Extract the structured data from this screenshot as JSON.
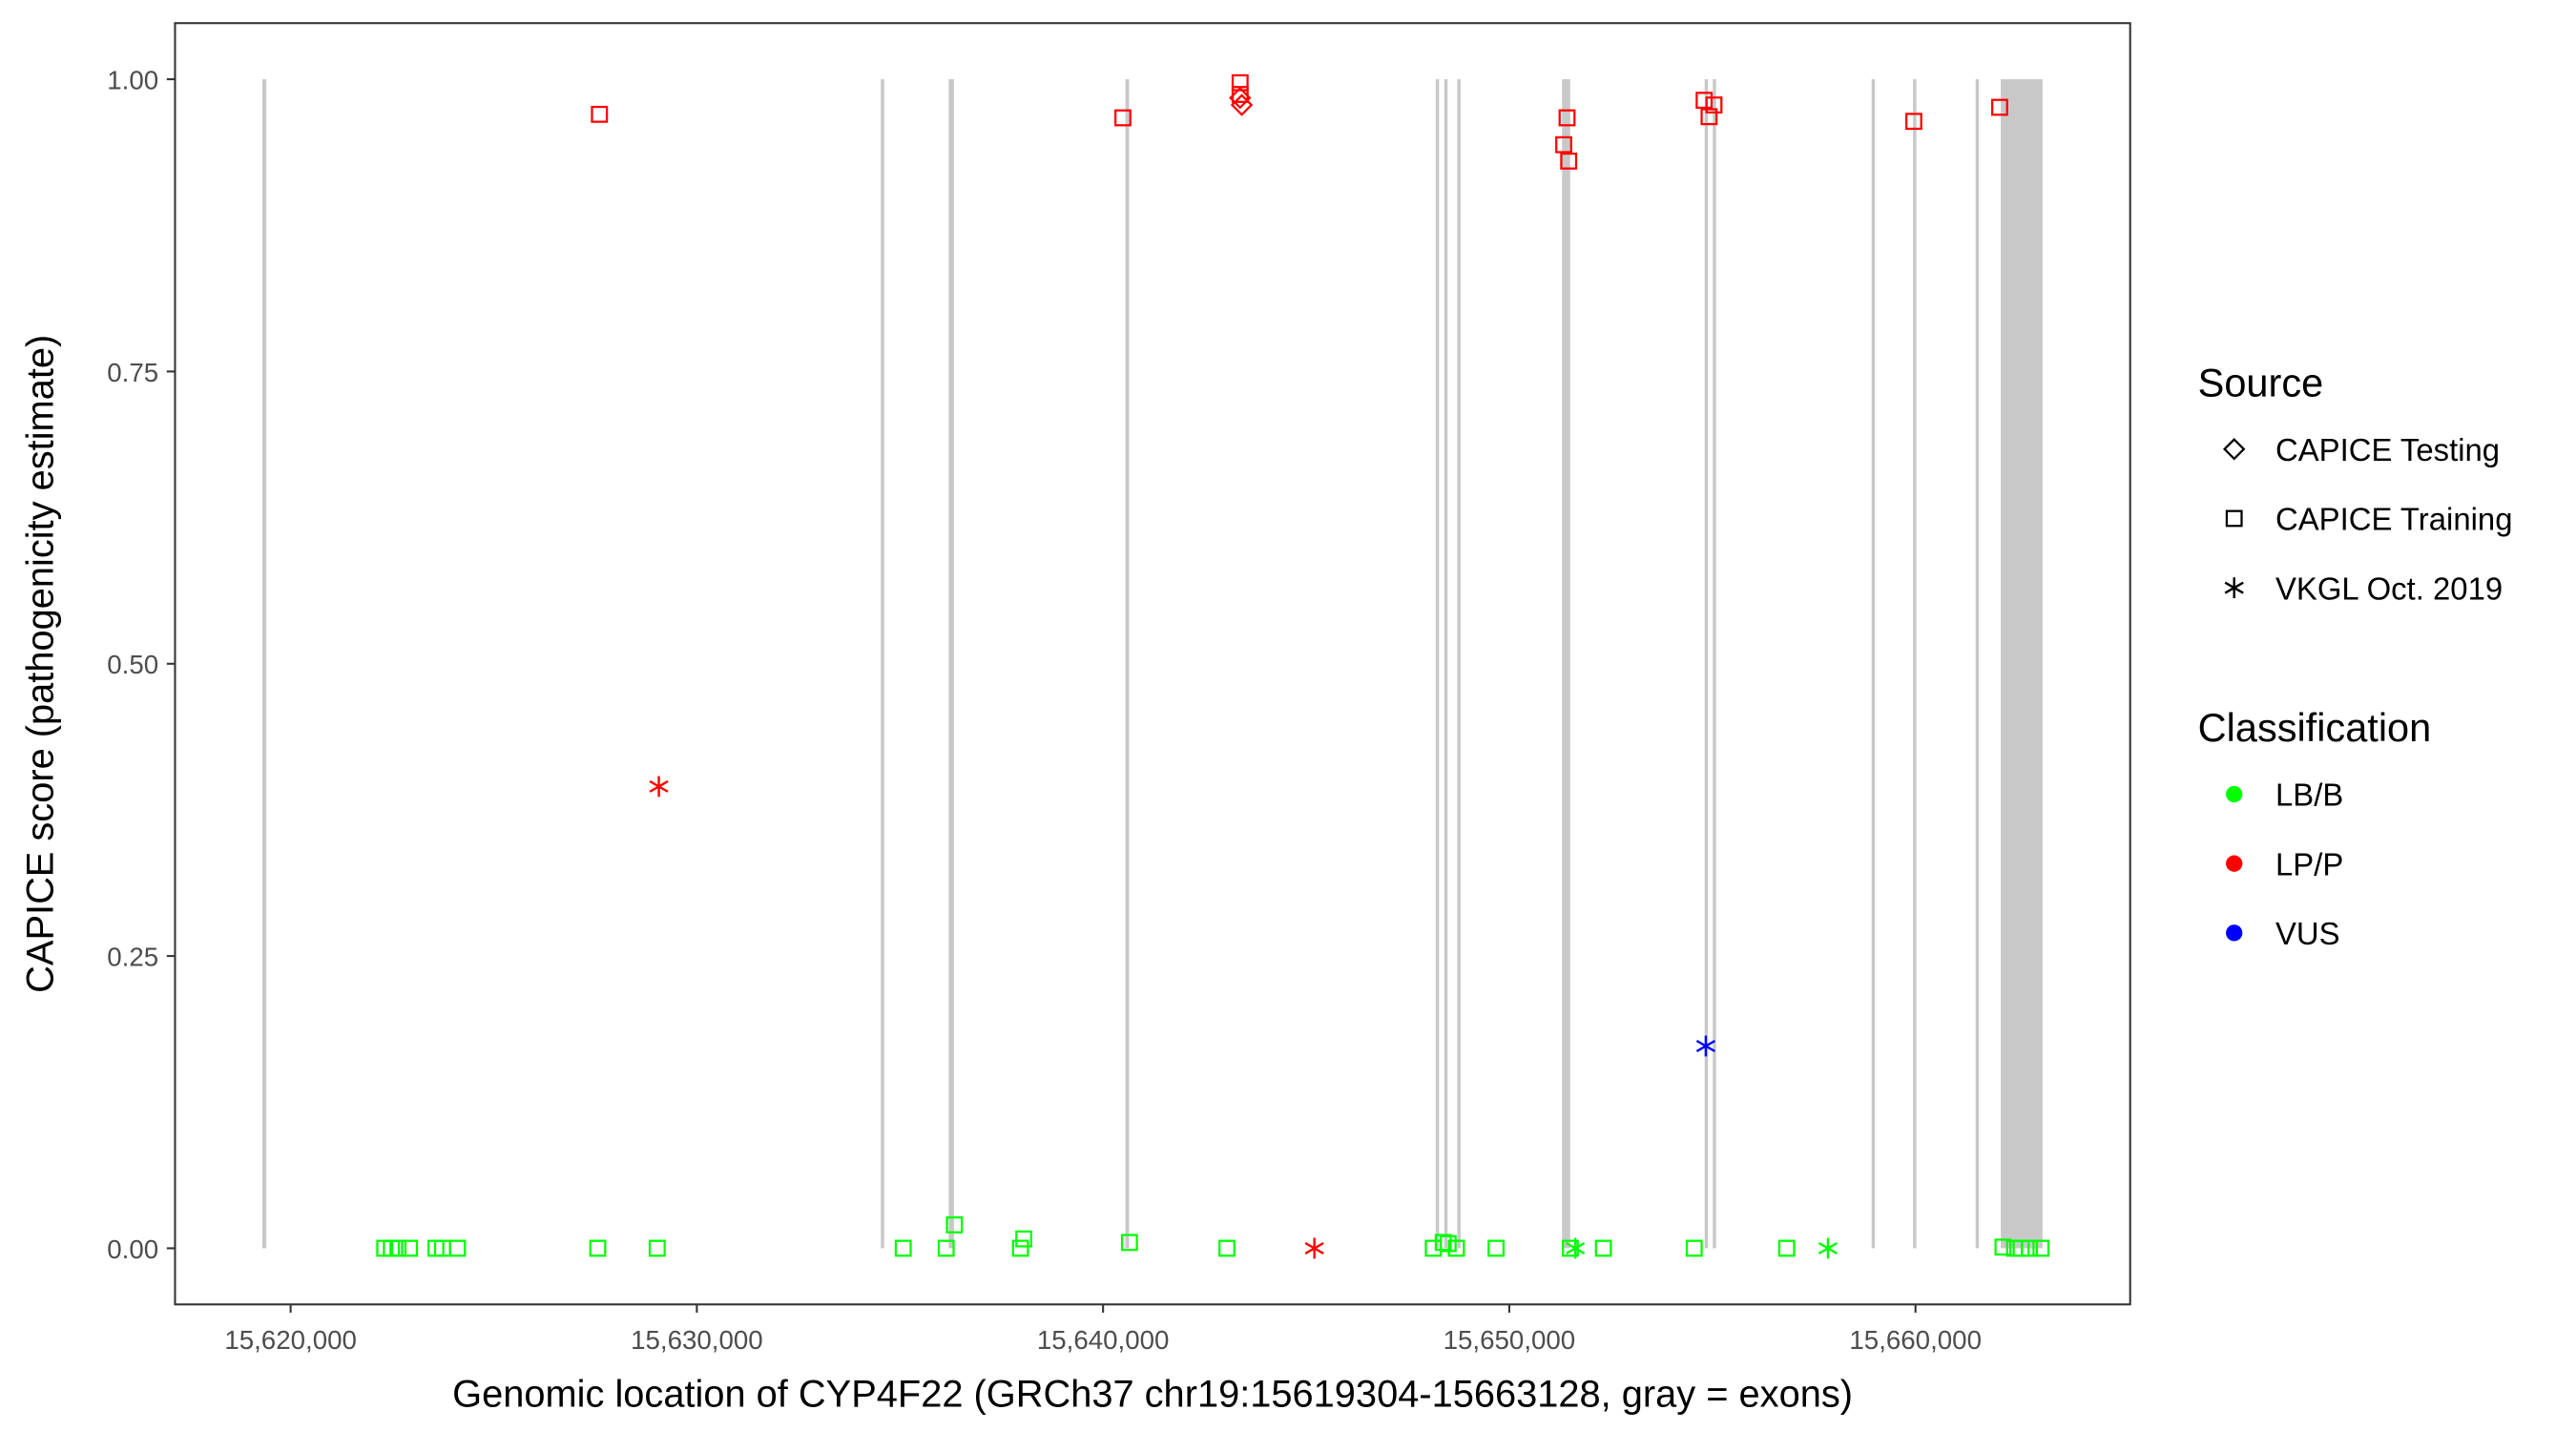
{
  "chart_data": {
    "type": "scatter",
    "xlabel": "Genomic location of CYP4F22 (GRCh37 chr19:15619304-15663128, gray = exons)",
    "ylabel": "CAPICE score (pathogenicity estimate)",
    "xlim": [
      15617000,
      15665000
    ],
    "ylim": [
      -0.045,
      1.05
    ],
    "x_ticks": [
      15620000,
      15630000,
      15640000,
      15650000,
      15660000
    ],
    "x_tick_labels": [
      "15,620,000",
      "15,630,000",
      "15,640,000",
      "15,650,000",
      "15,660,000"
    ],
    "y_ticks": [
      0,
      0.25,
      0.5,
      0.75,
      1.0
    ],
    "y_tick_labels": [
      "0.00",
      "0.25",
      "0.50",
      "0.75",
      "1.00"
    ],
    "grid": false,
    "exon_color": "#c8c8c8",
    "exons": [
      [
        15619304,
        15619400
      ],
      [
        15634530,
        15634580
      ],
      [
        15636200,
        15636330
      ],
      [
        15640550,
        15640640
      ],
      [
        15648190,
        15648240
      ],
      [
        15648400,
        15648450
      ],
      [
        15648720,
        15648780
      ],
      [
        15651300,
        15651500
      ],
      [
        15654810,
        15654860
      ],
      [
        15655010,
        15655070
      ],
      [
        15658920,
        15658990
      ],
      [
        15659940,
        15659990
      ],
      [
        15661480,
        15661540
      ],
      [
        15662100,
        15663128
      ]
    ],
    "legend": {
      "placement": "right",
      "source_title": "Source",
      "source_entries": [
        {
          "label": "CAPICE Testing",
          "shape": "diamond"
        },
        {
          "label": "CAPICE Training",
          "shape": "square"
        },
        {
          "label": "VKGL Oct. 2019",
          "shape": "asterisk"
        }
      ],
      "class_title": "Classification",
      "class_entries": [
        {
          "label": "LB/B",
          "color": "#00ff00"
        },
        {
          "label": "LP/P",
          "color": "#ff0000"
        },
        {
          "label": "VUS",
          "color": "#0000ff"
        }
      ]
    },
    "points": [
      {
        "x": 15622317,
        "y": 0,
        "source": "CAPICE Training",
        "class": "LB/B"
      },
      {
        "x": 15622480,
        "y": 0,
        "source": "CAPICE Training",
        "class": "LB/B"
      },
      {
        "x": 15622642,
        "y": 0,
        "source": "CAPICE Training",
        "class": "LB/B"
      },
      {
        "x": 15622927,
        "y": 0,
        "source": "CAPICE Training",
        "class": "LB/B"
      },
      {
        "x": 15623577,
        "y": 0,
        "source": "CAPICE Training",
        "class": "LB/B"
      },
      {
        "x": 15623740,
        "y": 0,
        "source": "CAPICE Training",
        "class": "LB/B"
      },
      {
        "x": 15624106,
        "y": 0,
        "source": "CAPICE Training",
        "class": "LB/B"
      },
      {
        "x": 15627561,
        "y": 0,
        "source": "CAPICE Training",
        "class": "LB/B"
      },
      {
        "x": 15629024,
        "y": 0,
        "source": "CAPICE Training",
        "class": "LB/B"
      },
      {
        "x": 15635081,
        "y": 0,
        "source": "CAPICE Training",
        "class": "LB/B"
      },
      {
        "x": 15636138,
        "y": 0,
        "source": "CAPICE Training",
        "class": "LB/B"
      },
      {
        "x": 15636341,
        "y": 0.02,
        "source": "CAPICE Training",
        "class": "LB/B"
      },
      {
        "x": 15637967,
        "y": 0,
        "source": "CAPICE Training",
        "class": "LB/B"
      },
      {
        "x": 15638049,
        "y": 0.008,
        "source": "CAPICE Training",
        "class": "LB/B"
      },
      {
        "x": 15640650,
        "y": 0.005,
        "source": "CAPICE Training",
        "class": "LB/B"
      },
      {
        "x": 15643049,
        "y": 0,
        "source": "CAPICE Training",
        "class": "LB/B"
      },
      {
        "x": 15648130,
        "y": 0,
        "source": "CAPICE Training",
        "class": "LB/B"
      },
      {
        "x": 15648374,
        "y": 0.005,
        "source": "CAPICE Training",
        "class": "LB/B"
      },
      {
        "x": 15648496,
        "y": 0.004,
        "source": "CAPICE Training",
        "class": "LB/B"
      },
      {
        "x": 15648699,
        "y": 0,
        "source": "CAPICE Training",
        "class": "LB/B"
      },
      {
        "x": 15649675,
        "y": 0,
        "source": "CAPICE Training",
        "class": "LB/B"
      },
      {
        "x": 15651504,
        "y": 0,
        "source": "CAPICE Training",
        "class": "LB/B"
      },
      {
        "x": 15652317,
        "y": 0,
        "source": "CAPICE Training",
        "class": "LB/B"
      },
      {
        "x": 15654553,
        "y": 0,
        "source": "CAPICE Training",
        "class": "LB/B"
      },
      {
        "x": 15656829,
        "y": 0,
        "source": "CAPICE Training",
        "class": "LB/B"
      },
      {
        "x": 15662154,
        "y": 0.001,
        "source": "CAPICE Training",
        "class": "LB/B"
      },
      {
        "x": 15662439,
        "y": 0,
        "source": "CAPICE Training",
        "class": "LB/B"
      },
      {
        "x": 15662601,
        "y": 0,
        "source": "CAPICE Training",
        "class": "LB/B"
      },
      {
        "x": 15662805,
        "y": 0,
        "source": "CAPICE Training",
        "class": "LB/B"
      },
      {
        "x": 15663089,
        "y": 0,
        "source": "CAPICE Training",
        "class": "LB/B"
      },
      {
        "x": 15651626,
        "y": 0,
        "source": "VKGL Oct. 2019",
        "class": "LB/B"
      },
      {
        "x": 15657845,
        "y": 0,
        "source": "VKGL Oct. 2019",
        "class": "LB/B"
      },
      {
        "x": 15629065,
        "y": 0.395,
        "source": "VKGL Oct. 2019",
        "class": "LP/P"
      },
      {
        "x": 15645203,
        "y": 0,
        "source": "VKGL Oct. 2019",
        "class": "LP/P"
      },
      {
        "x": 15654838,
        "y": 0.173,
        "source": "VKGL Oct. 2019",
        "class": "VUS"
      },
      {
        "x": 15627602,
        "y": 0.97,
        "source": "CAPICE Training",
        "class": "LP/P"
      },
      {
        "x": 15640488,
        "y": 0.967,
        "source": "CAPICE Training",
        "class": "LP/P"
      },
      {
        "x": 15643374,
        "y": 0.997,
        "source": "CAPICE Training",
        "class": "LP/P"
      },
      {
        "x": 15643374,
        "y": 0.987,
        "source": "CAPICE Training",
        "class": "LP/P"
      },
      {
        "x": 15651423,
        "y": 0.967,
        "source": "CAPICE Training",
        "class": "LP/P"
      },
      {
        "x": 15651341,
        "y": 0.944,
        "source": "CAPICE Training",
        "class": "LP/P"
      },
      {
        "x": 15651463,
        "y": 0.93,
        "source": "CAPICE Training",
        "class": "LP/P"
      },
      {
        "x": 15654797,
        "y": 0.982,
        "source": "CAPICE Training",
        "class": "LP/P"
      },
      {
        "x": 15654919,
        "y": 0.968,
        "source": "CAPICE Training",
        "class": "LP/P"
      },
      {
        "x": 15655040,
        "y": 0.978,
        "source": "CAPICE Training",
        "class": "LP/P"
      },
      {
        "x": 15659959,
        "y": 0.964,
        "source": "CAPICE Training",
        "class": "LP/P"
      },
      {
        "x": 15662073,
        "y": 0.976,
        "source": "CAPICE Training",
        "class": "LP/P"
      },
      {
        "x": 15643415,
        "y": 0.978,
        "source": "CAPICE Testing",
        "class": "LP/P"
      },
      {
        "x": 15643374,
        "y": 0.984,
        "source": "CAPICE Testing",
        "class": "LP/P"
      }
    ]
  }
}
